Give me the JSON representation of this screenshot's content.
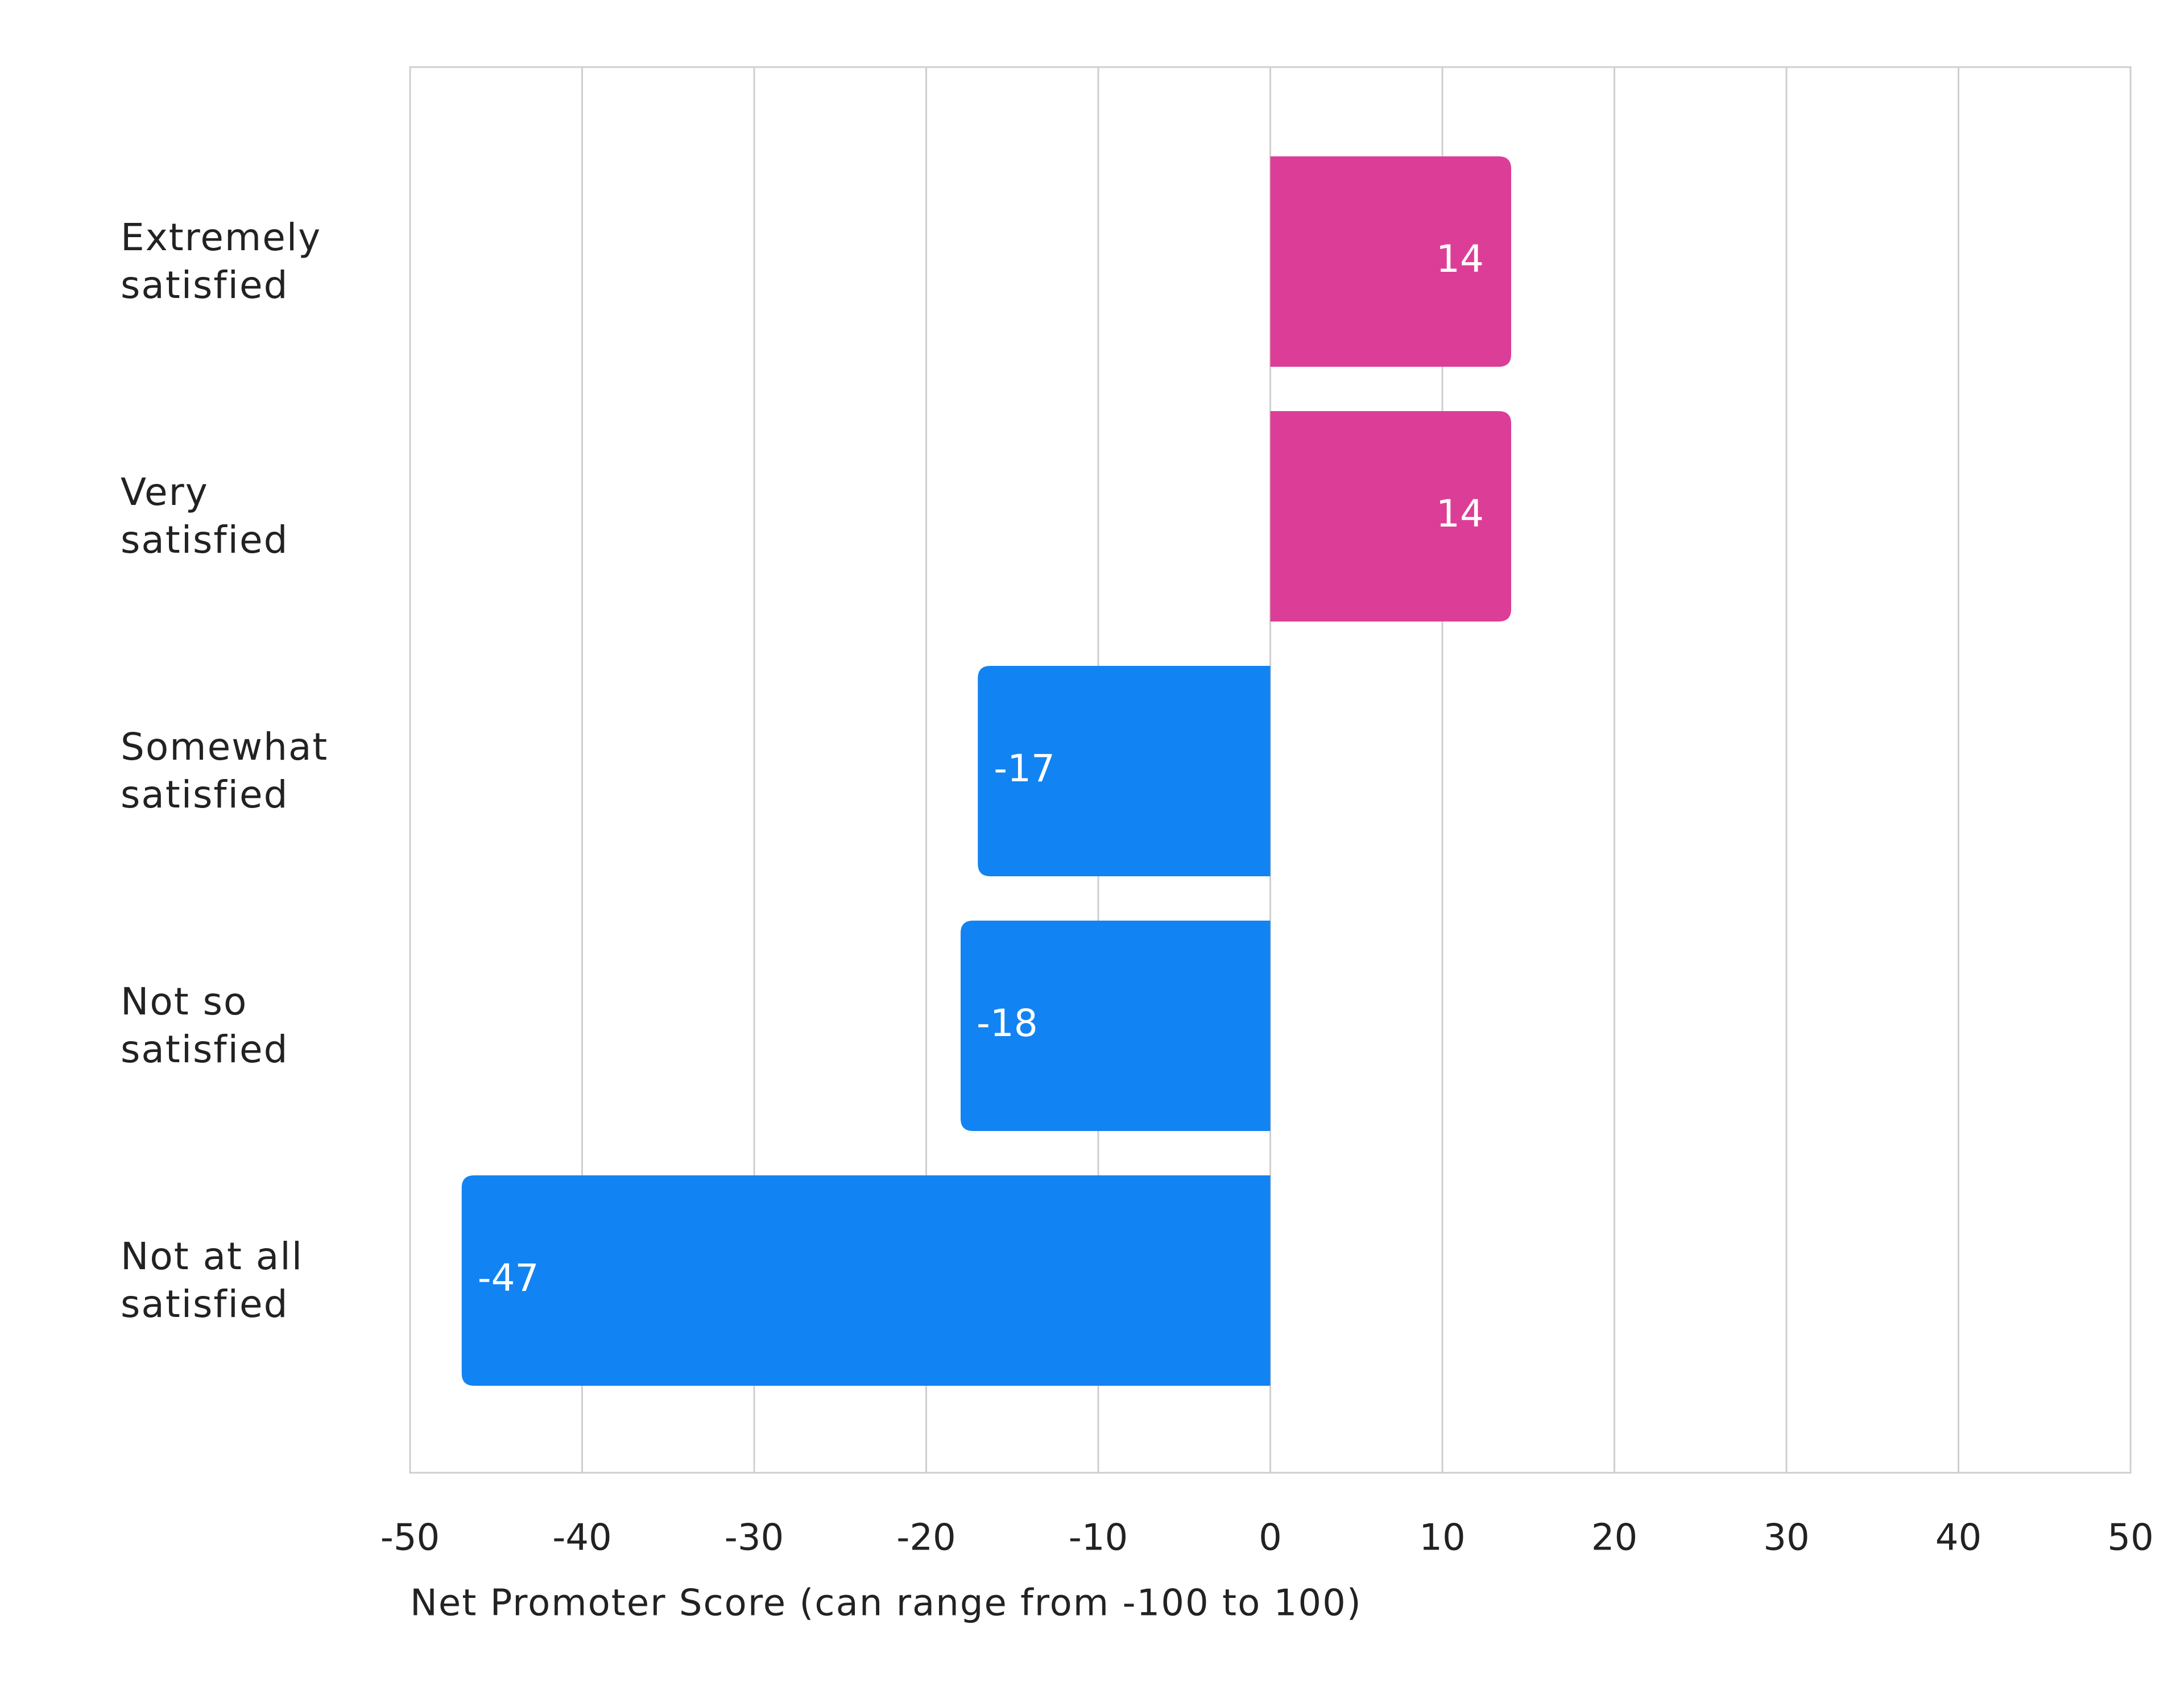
{
  "chart_data": {
    "type": "hbar",
    "categories": [
      "Extremely satisfied",
      "Very satisfied",
      "Somewhat satisfied",
      "Not so satisfied",
      "Not at all satisfied"
    ],
    "values": [
      14,
      14,
      -17,
      -18,
      -47
    ],
    "colors": [
      "#dc3e97",
      "#dc3e97",
      "#1283f2",
      "#1283f2",
      "#1283f2"
    ],
    "xlabel": "Net Promoter Score (can range from -100 to 100)",
    "xlim": [
      -50,
      50
    ],
    "xticks": [
      -50,
      -40,
      -30,
      -20,
      -10,
      0,
      10,
      20,
      30,
      40,
      50
    ],
    "grid": true
  }
}
